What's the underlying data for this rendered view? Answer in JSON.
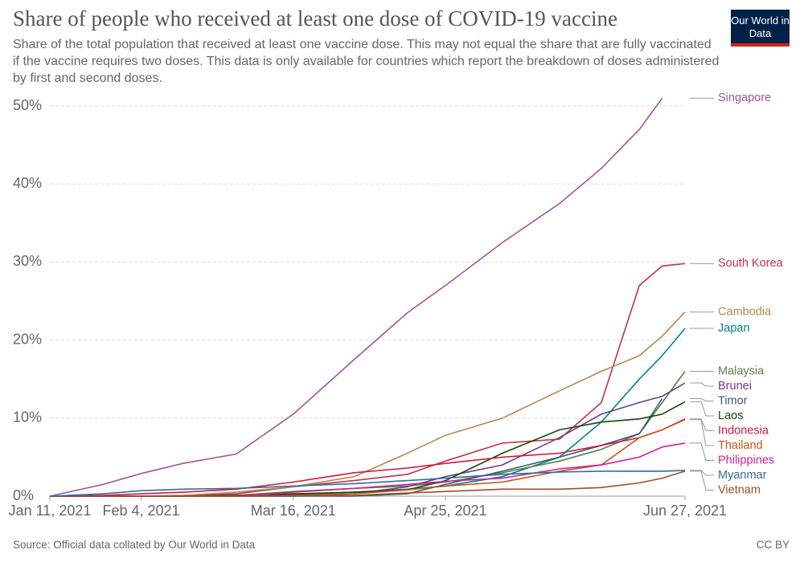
{
  "chart_data": {
    "type": "line",
    "title": "Share of people who received at least one dose of COVID-19 vaccine",
    "subtitle": "Share of the total population that received at least one vaccine dose. This may not equal the share that are fully vaccinated if the vaccine requires two doses. This data is only available for countries which report the breakdown of doses administered by first and second doses.",
    "source": "Source: Official data collated by Our World in Data",
    "license": "CC BY",
    "logo": "Our World in Data",
    "x": [
      "2021-01-11",
      "2021-01-25",
      "2021-02-04",
      "2021-02-15",
      "2021-03-01",
      "2021-03-16",
      "2021-04-01",
      "2021-04-15",
      "2021-04-25",
      "2021-05-10",
      "2021-05-25",
      "2021-06-05",
      "2021-06-15",
      "2021-06-21",
      "2021-06-27"
    ],
    "xlim": [
      "2021-01-11",
      "2021-06-27"
    ],
    "xticks": [
      {
        "value": "2021-01-11",
        "label": "Jan 11, 2021"
      },
      {
        "value": "2021-02-04",
        "label": "Feb 4, 2021"
      },
      {
        "value": "2021-03-16",
        "label": "Mar 16, 2021"
      },
      {
        "value": "2021-04-25",
        "label": "Apr 25, 2021"
      },
      {
        "value": "2021-06-27",
        "label": "Jun 27, 2021"
      }
    ],
    "ylim": [
      0,
      50
    ],
    "yticks": [
      {
        "value": 0,
        "label": "0%"
      },
      {
        "value": 10,
        "label": "10%"
      },
      {
        "value": 20,
        "label": "20%"
      },
      {
        "value": 30,
        "label": "30%"
      },
      {
        "value": 40,
        "label": "40%"
      },
      {
        "value": 50,
        "label": "50%"
      }
    ],
    "grid": true,
    "series": [
      {
        "name": "Singapore",
        "color": "#a2559c",
        "values": [
          0,
          1.5,
          2.9,
          4.2,
          5.4,
          10.5,
          17.5,
          23.5,
          27,
          32.5,
          37.5,
          42,
          47,
          51,
          null
        ]
      },
      {
        "name": "South Korea",
        "color": "#be3448",
        "values": [
          0,
          0,
          0,
          0,
          0.3,
          1.2,
          2.0,
          2.8,
          4.5,
          6.8,
          7.3,
          12,
          27,
          29.5,
          29.8
        ]
      },
      {
        "name": "Cambodia",
        "color": "#b8874f",
        "values": [
          0,
          0,
          0,
          0.1,
          0.5,
          1.2,
          2.5,
          5.5,
          7.8,
          10,
          13.5,
          16,
          18,
          20.5,
          23.6
        ]
      },
      {
        "name": "Japan",
        "color": "#00847e",
        "values": [
          0,
          0,
          0,
          0,
          0.1,
          0.2,
          0.5,
          0.9,
          1.3,
          2.5,
          5,
          9.5,
          15,
          18,
          21.5
        ]
      },
      {
        "name": "Malaysia",
        "color": "#578145",
        "values": [
          0,
          0,
          0,
          0,
          0.1,
          0.6,
          1.0,
          1.3,
          1.8,
          3,
          4.5,
          6,
          8,
          12,
          16
        ]
      },
      {
        "name": "Brunei",
        "color": "#6d3e91",
        "values": [
          0,
          0,
          0,
          0,
          0,
          0,
          0.3,
          1.2,
          2.5,
          4,
          7.5,
          10.5,
          12,
          12.8,
          14.5
        ]
      },
      {
        "name": "Timor",
        "color": "#38577c",
        "values": [
          0,
          0,
          0,
          0,
          0,
          0,
          0,
          0.3,
          1.5,
          3.2,
          5,
          6.5,
          8,
          12.5,
          null
        ]
      },
      {
        "name": "Laos",
        "color": "#18470f",
        "values": [
          0,
          0,
          0,
          0,
          0.1,
          0.3,
          0.5,
          0.8,
          2,
          5.5,
          8.5,
          9.5,
          9.9,
          10.5,
          12.1
        ]
      },
      {
        "name": "Indonesia",
        "color": "#d6163e",
        "values": [
          0,
          0.1,
          0.3,
          0.5,
          0.9,
          1.8,
          3,
          3.6,
          4.2,
          5,
          5.5,
          6.5,
          7.5,
          8.5,
          9.9
        ]
      },
      {
        "name": "Thailand",
        "color": "#c05917",
        "values": [
          0,
          0,
          0,
          0,
          0,
          0.1,
          0.3,
          0.8,
          1.3,
          1.8,
          3.2,
          4,
          7.5,
          8.5,
          9.8
        ]
      },
      {
        "name": "Philippines",
        "color": "#d01f9b",
        "values": [
          0,
          0,
          0,
          0,
          0,
          0.5,
          1.0,
          1.5,
          1.9,
          2.3,
          3.5,
          4,
          5,
          6.3,
          6.8
        ]
      },
      {
        "name": "Vietnam",
        "color": "#9a5129",
        "values": [
          0,
          0,
          0,
          0,
          0,
          0.05,
          0.1,
          0.4,
          0.6,
          0.9,
          0.9,
          1.1,
          1.7,
          2.3,
          3.2
        ]
      },
      {
        "name": "Myanmar",
        "color": "#2f6e9e",
        "values": [
          0,
          0.3,
          0.7,
          0.9,
          1.0,
          1.3,
          1.6,
          2.0,
          2.3,
          2.8,
          3.1,
          3.2,
          3.2,
          3.2,
          3.3
        ]
      }
    ]
  }
}
